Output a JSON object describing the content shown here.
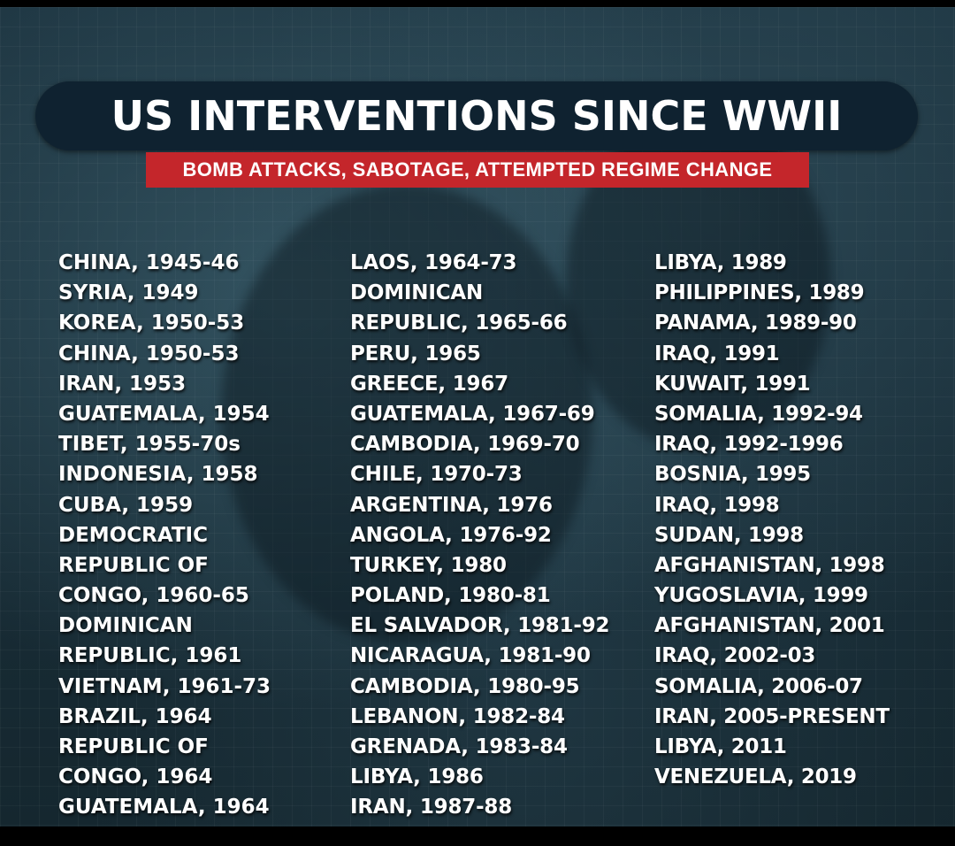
{
  "poster": {
    "title": "US INTERVENTIONS SINCE WWII",
    "subtitle": "BOMB ATTACKS, SABOTAGE, ATTEMPTED REGIME CHANGE",
    "colors": {
      "background": "#1a2f3a",
      "title_bar": "#0f2230",
      "subtitle_bar": "#c4262b",
      "text": "#ffffff"
    }
  },
  "columns": [
    [
      "CHINA, 1945-46",
      "SYRIA, 1949",
      "KOREA, 1950-53",
      "CHINA, 1950-53",
      "IRAN, 1953",
      "GUATEMALA, 1954",
      "TIBET, 1955-70s",
      "INDONESIA, 1958",
      "CUBA, 1959",
      "DEMOCRATIC",
      "REPUBLIC OF",
      "CONGO, 1960-65",
      "DOMINICAN",
      "REPUBLIC, 1961",
      "VIETNAM, 1961-73",
      "BRAZIL, 1964",
      "REPUBLIC OF",
      "CONGO, 1964",
      "GUATEMALA, 1964"
    ],
    [
      "LAOS, 1964-73",
      "DOMINICAN",
      "REPUBLIC, 1965-66",
      "PERU, 1965",
      "GREECE, 1967",
      "GUATEMALA, 1967-69",
      "CAMBODIA, 1969-70",
      "CHILE, 1970-73",
      "ARGENTINA, 1976",
      "ANGOLA, 1976-92",
      "TURKEY, 1980",
      "POLAND, 1980-81",
      "EL SALVADOR, 1981-92",
      "NICARAGUA, 1981-90",
      "CAMBODIA, 1980-95",
      "LEBANON, 1982-84",
      "GRENADA, 1983-84",
      "LIBYA, 1986",
      "IRAN, 1987-88"
    ],
    [
      "LIBYA, 1989",
      "PHILIPPINES, 1989",
      "PANAMA, 1989-90",
      "IRAQ, 1991",
      "KUWAIT, 1991",
      "SOMALIA, 1992-94",
      "IRAQ, 1992-1996",
      "BOSNIA, 1995",
      "IRAQ, 1998",
      "SUDAN, 1998",
      "AFGHANISTAN, 1998",
      "YUGOSLAVIA, 1999",
      "AFGHANISTAN, 2001",
      "IRAQ, 2002-03",
      "SOMALIA, 2006-07",
      "IRAN, 2005-PRESENT",
      "LIBYA, 2011",
      "VENEZUELA, 2019"
    ]
  ]
}
